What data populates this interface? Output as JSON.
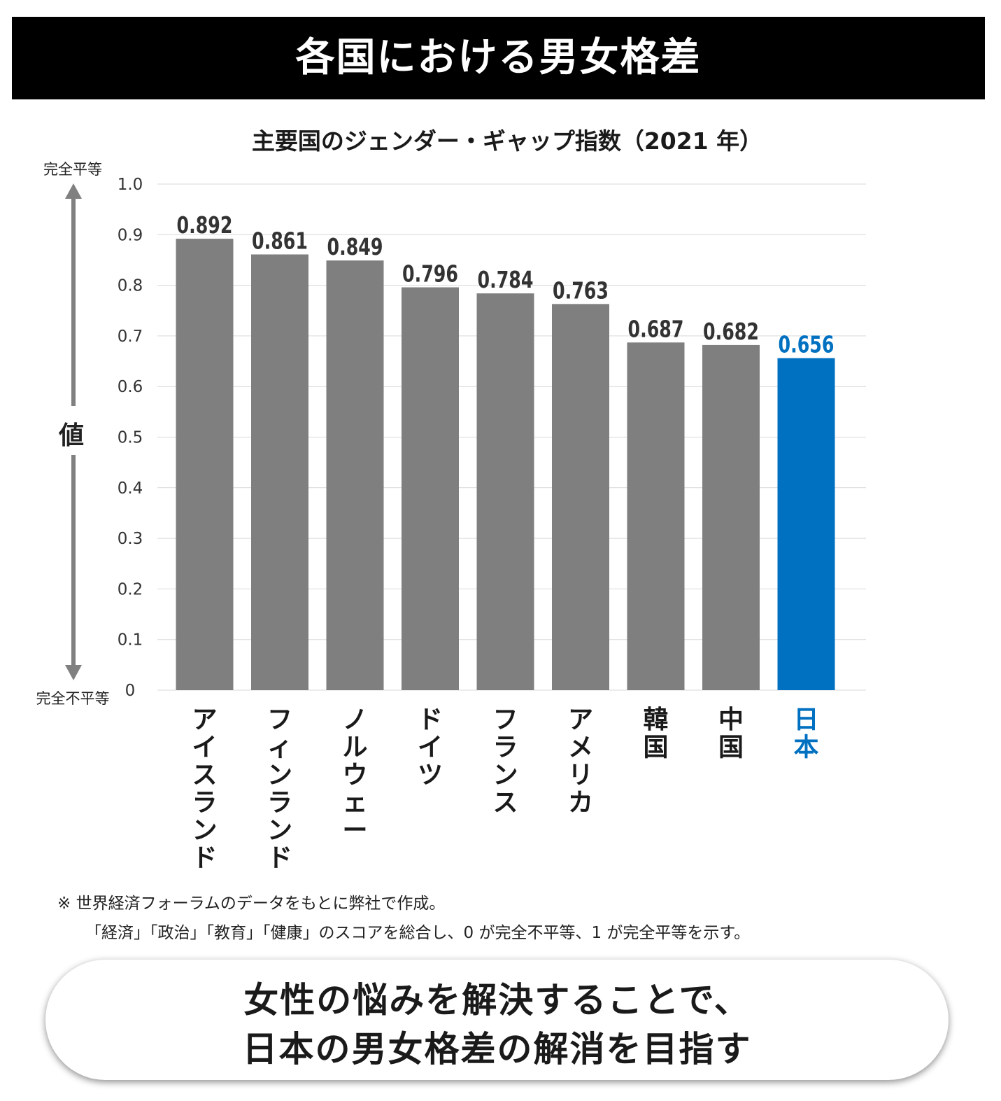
{
  "header": {
    "title": "各国における男女格差"
  },
  "chart_data": {
    "type": "bar",
    "title": "主要国のジェンダー・ギャップ指数（2021 年）",
    "categories": [
      "アイスランド",
      "フィンランド",
      "ノルウェー",
      "ドイツ",
      "フランス",
      "アメリカ",
      "韓国",
      "中国",
      "日本"
    ],
    "values": [
      0.892,
      0.861,
      0.849,
      0.796,
      0.784,
      0.763,
      0.687,
      0.682,
      0.656
    ],
    "value_labels": [
      "0.892",
      "0.861",
      "0.849",
      "0.796",
      "0.784",
      "0.763",
      "0.687",
      "0.682",
      "0.656"
    ],
    "highlight_index": 8,
    "ylabel": "値",
    "ylim": [
      0,
      1.0
    ],
    "yticks": [
      "0",
      "0.1",
      "0.2",
      "0.3",
      "0.4",
      "0.5",
      "0.6",
      "0.7",
      "0.8",
      "0.9",
      "1.0"
    ],
    "y_top_label": "完全平等",
    "y_bottom_label": "完全不平等",
    "grid": true,
    "colors": {
      "bar": "#7f7f7f",
      "highlight": "#0070c0",
      "grid": "#d9d9d9",
      "arrow": "#808080"
    }
  },
  "notes": {
    "line1": "※ 世界経済フォーラムのデータをもとに弊社で作成。",
    "line2": "「経済」「政治」「教育」「健康」のスコアを総合し、0 が完全不平等、1 が完全平等を示す。"
  },
  "callout": {
    "line1": "女性の悩みを解決することで、",
    "line2": "日本の男女格差の解消を目指す"
  }
}
